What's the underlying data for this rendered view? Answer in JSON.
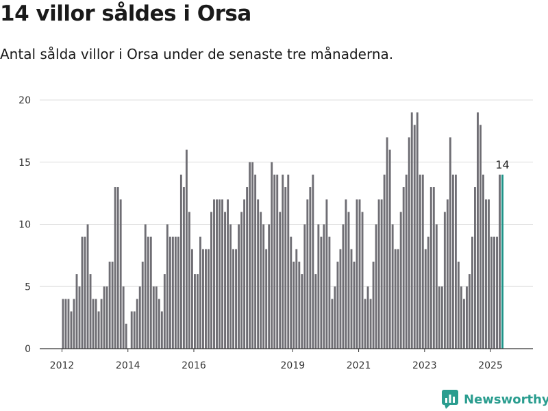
{
  "header": {
    "title": "14 villor såldes i Orsa",
    "subtitle": "Antal sålda villor i Orsa under de senaste tre månaderna."
  },
  "brand": {
    "name": "Newsworthy",
    "icon": "newsworthy-logo-icon",
    "color": "#2a9d8f"
  },
  "colors": {
    "bar": "#6f6e74",
    "highlight": "#1e9488",
    "grid": "#dddddd",
    "axis": "#333333"
  },
  "chart_data": {
    "type": "bar",
    "title": "14 villor såldes i Orsa",
    "subtitle": "Antal sålda villor i Orsa under de senaste tre månaderna.",
    "xlabel": "",
    "ylabel": "",
    "ylim": [
      0,
      20
    ],
    "yticks": [
      0,
      5,
      10,
      15,
      20
    ],
    "xticks": [
      "2012",
      "2014",
      "2016",
      "2019",
      "2021",
      "2023",
      "2025"
    ],
    "grid": true,
    "x_start": "2012-01",
    "x_end": "2025-05",
    "values": [
      4,
      4,
      4,
      3,
      4,
      6,
      5,
      9,
      9,
      10,
      6,
      4,
      4,
      3,
      4,
      5,
      5,
      7,
      7,
      13,
      13,
      12,
      5,
      2,
      0,
      3,
      3,
      4,
      5,
      7,
      10,
      9,
      9,
      5,
      5,
      4,
      3,
      6,
      10,
      9,
      9,
      9,
      9,
      14,
      13,
      16,
      11,
      8,
      6,
      6,
      9,
      8,
      8,
      8,
      11,
      12,
      12,
      12,
      12,
      11,
      12,
      10,
      8,
      8,
      10,
      11,
      12,
      13,
      15,
      15,
      14,
      12,
      11,
      10,
      8,
      10,
      15,
      14,
      14,
      11,
      14,
      13,
      14,
      9,
      7,
      8,
      7,
      6,
      10,
      12,
      13,
      14,
      6,
      10,
      9,
      10,
      12,
      9,
      4,
      5,
      7,
      8,
      10,
      12,
      11,
      8,
      7,
      12,
      12,
      11,
      4,
      5,
      4,
      7,
      10,
      12,
      12,
      14,
      17,
      16,
      10,
      8,
      8,
      11,
      13,
      14,
      17,
      19,
      18,
      19,
      14,
      14,
      8,
      9,
      13,
      13,
      10,
      5,
      5,
      11,
      12,
      17,
      14,
      14,
      7,
      5,
      4,
      5,
      6,
      9,
      13,
      19,
      18,
      14,
      12,
      12,
      9,
      9,
      9,
      14,
      14
    ],
    "highlight": {
      "index": 160,
      "label": "14"
    }
  }
}
